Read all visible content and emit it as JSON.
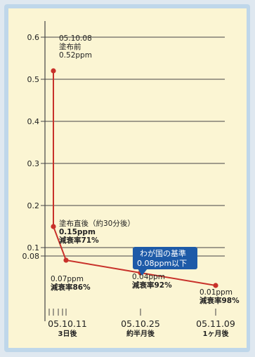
{
  "chart_data": {
    "type": "line",
    "ylim": [
      0,
      0.6
    ],
    "yticks": [
      0.1,
      0.2,
      0.3,
      0.4,
      0.5,
      0.6
    ],
    "ytick_labels": [
      "0.1",
      "0.2",
      "0.3",
      "0.4",
      "0.5",
      "0.6"
    ],
    "extra_ytick": {
      "value": 0.08,
      "label": "0.08"
    },
    "grid": true,
    "x_ticks": [
      {
        "date": "05.10.11",
        "sub": "3日後"
      },
      {
        "date": "05.10.25",
        "sub": "約半月後"
      },
      {
        "date": "05.11.09",
        "sub": "1ヶ月後"
      }
    ],
    "points": [
      {
        "x": "05.10.08",
        "y": 0.52,
        "label_lines": [
          "05.10.08",
          "塗布前",
          "0.52ppm"
        ]
      },
      {
        "x": "05.10.08 (約30分後)",
        "y": 0.15,
        "label_lines": [
          "塗布直後（約30分後）",
          "0.15ppm",
          "減衰率71%"
        ]
      },
      {
        "x": "05.10.11",
        "y": 0.07,
        "label_lines": [
          "0.07ppm",
          "減衰率86%"
        ]
      },
      {
        "x": "05.10.25",
        "y": 0.04,
        "label_lines": [
          "0.04ppm",
          "減衰率92%"
        ]
      },
      {
        "x": "05.11.09",
        "y": 0.01,
        "label_lines": [
          "0.01ppm",
          "減衰率98%"
        ]
      }
    ],
    "standard_callout": {
      "lines": [
        "わが国の基準",
        "0.08ppm以下"
      ]
    },
    "colors": {
      "line": "#c8312a",
      "point": "#c8312a",
      "grid": "#444444",
      "callout": "#1d5aa8",
      "background": "#fbf5d3"
    }
  }
}
